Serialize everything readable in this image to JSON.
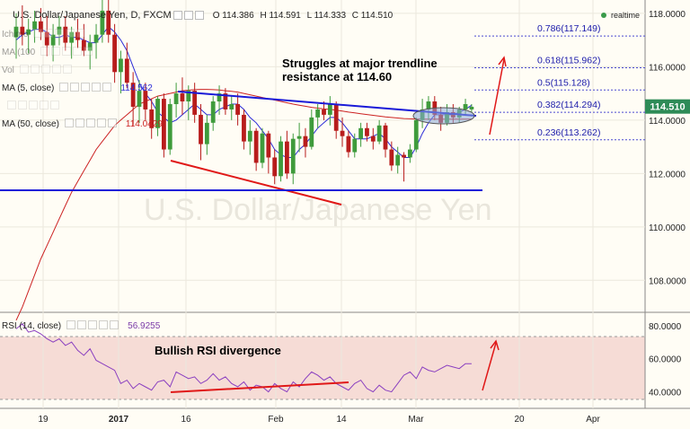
{
  "header": {
    "title": "U.S. Dollar/Japanese Yen, D, FXCM",
    "open": "O 114.386",
    "high": "H 114.591",
    "low": "L 114.333",
    "close": "C 114.510",
    "status": "realtime"
  },
  "indicators": [
    {
      "label": "Ichimo",
      "value": "",
      "faded": true
    },
    {
      "label": "MA (100",
      "value": "",
      "faded": true
    },
    {
      "label": "Vol",
      "value": "",
      "faded": true
    },
    {
      "label": "MA (5, close)",
      "value": "114.562",
      "color": "#2b2bd8"
    },
    {
      "label": "",
      "value": "",
      "faded": true
    },
    {
      "label": "MA (50, close)",
      "value": "114.0429",
      "color": "#cc2222"
    }
  ],
  "annotations": {
    "trendline_note": "Struggles at major trendline\nresistance at 114.60",
    "rsi_note": "Bullish RSI divergence"
  },
  "fib_levels": [
    {
      "label": "0.786(117.149)",
      "price": 117.149
    },
    {
      "label": "0.618(115.962)",
      "price": 115.962
    },
    {
      "label": "0.5(115.128)",
      "price": 115.128
    },
    {
      "label": "0.382(114.294)",
      "price": 114.294
    },
    {
      "label": "0.236(113.262)",
      "price": 113.262
    }
  ],
  "price_axis": {
    "ticks": [
      "118.0000",
      "116.0000",
      "114.0000",
      "112.0000",
      "110.0000",
      "108.0000"
    ],
    "tick_values": [
      118,
      116,
      114,
      112,
      110,
      108
    ],
    "current": "114.510",
    "current_value": 114.51,
    "current_color": "#2e8b57"
  },
  "rsi": {
    "label": "RSI (14, close)",
    "value": "56.9255",
    "ticks": [
      "80.0000",
      "60.0000",
      "40.0000"
    ],
    "tick_values": [
      80,
      60,
      40
    ]
  },
  "time_axis": {
    "ticks": [
      "19",
      "2017",
      "16",
      "Feb",
      "14",
      "Mar",
      "20",
      "Apr"
    ]
  },
  "watermark": "U.S. Dollar/Japanese Yen",
  "chart_data": {
    "type": "candlestick",
    "y_range": [
      106.8,
      118.5
    ],
    "candles": [
      [
        117.1,
        118.0,
        116.3,
        117.5
      ],
      [
        117.5,
        118.3,
        116.8,
        117.2
      ],
      [
        117.2,
        117.8,
        116.5,
        117.4
      ],
      [
        117.4,
        118.1,
        116.9,
        117.7
      ],
      [
        117.7,
        118.2,
        117.0,
        117.3
      ],
      [
        117.3,
        117.9,
        116.4,
        116.8
      ],
      [
        116.8,
        117.6,
        116.2,
        117.2
      ],
      [
        117.2,
        117.9,
        116.8,
        117.5
      ],
      [
        117.5,
        117.9,
        116.6,
        116.9
      ],
      [
        116.9,
        117.5,
        116.3,
        117.3
      ],
      [
        117.3,
        117.8,
        116.7,
        117.0
      ],
      [
        117.0,
        117.6,
        116.4,
        116.6
      ],
      [
        116.6,
        117.2,
        115.9,
        116.9
      ],
      [
        116.9,
        117.6,
        116.3,
        117.2
      ],
      [
        117.2,
        118.6,
        116.9,
        118.1
      ],
      [
        118.1,
        118.6,
        116.9,
        117.2
      ],
      [
        117.2,
        117.6,
        115.4,
        115.8
      ],
      [
        115.8,
        116.6,
        115.0,
        116.3
      ],
      [
        116.3,
        116.9,
        115.2,
        115.4
      ],
      [
        115.4,
        115.8,
        113.8,
        114.5
      ],
      [
        114.5,
        115.5,
        113.9,
        115.1
      ],
      [
        115.1,
        115.4,
        114.0,
        114.4
      ],
      [
        114.4,
        114.8,
        113.3,
        113.7
      ],
      [
        113.7,
        114.9,
        113.4,
        114.8
      ],
      [
        114.8,
        115.0,
        112.6,
        112.9
      ],
      [
        112.9,
        114.8,
        112.7,
        114.6
      ],
      [
        114.6,
        115.4,
        114.1,
        115.0
      ],
      [
        115.0,
        115.6,
        114.2,
        114.7
      ],
      [
        114.7,
        115.3,
        114.0,
        115.1
      ],
      [
        115.1,
        115.4,
        113.9,
        114.2
      ],
      [
        114.2,
        114.6,
        112.5,
        113.1
      ],
      [
        113.1,
        114.2,
        112.7,
        113.9
      ],
      [
        113.9,
        114.9,
        113.6,
        114.7
      ],
      [
        114.7,
        115.3,
        114.2,
        115.0
      ],
      [
        115.0,
        115.2,
        114.2,
        114.4
      ],
      [
        114.4,
        114.9,
        114.0,
        114.6
      ],
      [
        114.6,
        115.0,
        113.8,
        114.2
      ],
      [
        114.2,
        114.4,
        112.9,
        113.2
      ],
      [
        113.2,
        114.0,
        112.7,
        113.6
      ],
      [
        113.6,
        113.7,
        112.1,
        112.4
      ],
      [
        112.4,
        113.7,
        112.2,
        113.5
      ],
      [
        113.5,
        113.6,
        112.0,
        112.6
      ],
      [
        112.6,
        112.9,
        111.6,
        111.9
      ],
      [
        111.9,
        113.4,
        111.7,
        113.2
      ],
      [
        113.2,
        113.6,
        111.8,
        112.0
      ],
      [
        112.0,
        113.5,
        111.6,
        113.3
      ],
      [
        113.3,
        113.9,
        112.8,
        113.4
      ],
      [
        113.4,
        113.7,
        112.6,
        113.0
      ],
      [
        113.0,
        114.4,
        112.9,
        114.1
      ],
      [
        114.1,
        114.6,
        113.7,
        114.4
      ],
      [
        114.4,
        114.7,
        114.0,
        114.2
      ],
      [
        114.2,
        114.9,
        113.8,
        114.6
      ],
      [
        114.6,
        114.7,
        113.3,
        113.6
      ],
      [
        113.6,
        114.1,
        113.0,
        113.4
      ],
      [
        113.4,
        113.6,
        112.6,
        112.8
      ],
      [
        112.8,
        113.5,
        112.6,
        113.3
      ],
      [
        113.3,
        113.9,
        113.0,
        113.7
      ],
      [
        113.7,
        113.9,
        113.2,
        113.4
      ],
      [
        113.4,
        113.7,
        112.9,
        113.2
      ],
      [
        113.2,
        114.0,
        113.1,
        113.8
      ],
      [
        113.8,
        113.9,
        112.6,
        112.9
      ],
      [
        112.9,
        113.2,
        112.1,
        112.3
      ],
      [
        112.3,
        113.0,
        112.0,
        112.7
      ],
      [
        112.7,
        112.8,
        111.7,
        112.6
      ],
      [
        112.6,
        113.1,
        112.4,
        112.9
      ],
      [
        112.9,
        114.1,
        112.8,
        114.0
      ],
      [
        114.0,
        114.8,
        113.7,
        114.4
      ],
      [
        114.4,
        114.9,
        114.0,
        114.7
      ],
      [
        114.7,
        114.9,
        114.0,
        114.2
      ],
      [
        114.2,
        114.5,
        113.6,
        113.9
      ],
      [
        113.9,
        114.6,
        113.8,
        114.3
      ],
      [
        114.3,
        114.6,
        113.9,
        114.1
      ],
      [
        114.1,
        114.5,
        113.9,
        114.4
      ],
      [
        114.4,
        114.8,
        114.2,
        114.6
      ],
      [
        114.4,
        114.6,
        114.3,
        114.5
      ]
    ],
    "ma5": [
      117.0,
      117.2,
      117.3,
      117.4,
      117.4,
      117.3,
      117.1,
      117.1,
      117.2,
      117.1,
      117.1,
      117.0,
      116.9,
      116.9,
      117.2,
      117.5,
      117.3,
      117.0,
      116.6,
      116.0,
      115.4,
      115.0,
      114.7,
      114.3,
      114.1,
      113.9,
      114.0,
      114.2,
      114.4,
      114.6,
      114.4,
      114.2,
      114.2,
      114.4,
      114.5,
      114.6,
      114.6,
      114.4,
      114.1,
      113.9,
      113.6,
      113.3,
      112.9,
      112.7,
      112.6,
      112.6,
      112.9,
      113.1,
      113.4,
      113.7,
      113.9,
      114.1,
      114.1,
      113.9,
      113.6,
      113.3,
      113.3,
      113.3,
      113.4,
      113.5,
      113.3,
      113.0,
      112.8,
      112.6,
      112.6,
      113.0,
      113.5,
      113.9,
      114.2,
      114.2,
      114.2,
      114.2,
      114.3,
      114.4,
      114.56
    ],
    "ma50": [
      106.5,
      107.0,
      107.6,
      108.2,
      108.8,
      109.3,
      109.8,
      110.3,
      110.8,
      111.3,
      111.7,
      112.1,
      112.5,
      112.9,
      113.2,
      113.5,
      113.8,
      114.0,
      114.2,
      114.4,
      114.6,
      114.7,
      114.8,
      114.9,
      114.95,
      115.0,
      115.05,
      115.1,
      115.12,
      115.14,
      115.15,
      115.15,
      115.14,
      115.13,
      115.1,
      115.08,
      115.05,
      115.0,
      114.95,
      114.9,
      114.85,
      114.8,
      114.75,
      114.7,
      114.65,
      114.6,
      114.56,
      114.52,
      114.48,
      114.45,
      114.42,
      114.4,
      114.37,
      114.34,
      114.3,
      114.27,
      114.24,
      114.21,
      114.18,
      114.15,
      114.12,
      114.1,
      114.08,
      114.06,
      114.05,
      114.04,
      114.04,
      114.04,
      114.04,
      114.04,
      114.04,
      114.04,
      114.04,
      114.04,
      114.04
    ],
    "rsi_values": [
      78,
      81,
      76,
      77,
      75,
      72,
      70,
      72,
      68,
      70,
      65,
      62,
      66,
      59,
      57,
      55,
      53,
      45,
      47,
      42,
      45,
      43,
      41,
      46,
      47,
      43,
      52,
      50,
      48,
      49,
      45,
      47,
      51,
      47,
      49,
      45,
      43,
      46,
      41,
      44,
      43,
      40,
      45,
      42,
      40,
      46,
      43,
      48,
      52,
      50,
      47,
      49,
      45,
      43,
      41,
      45,
      47,
      42,
      40,
      44,
      41,
      40,
      45,
      50,
      52,
      48,
      55,
      53,
      52,
      54,
      56,
      55,
      54,
      57,
      57
    ]
  }
}
